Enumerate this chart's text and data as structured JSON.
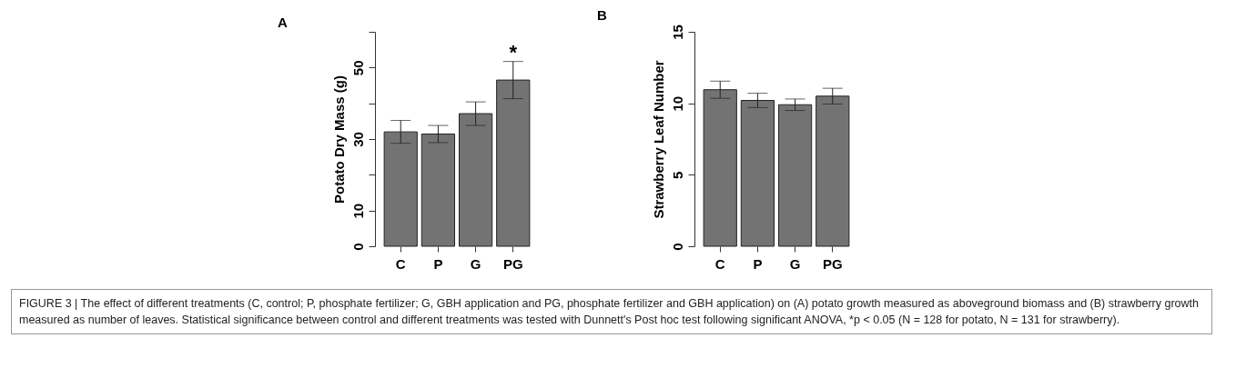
{
  "chart_data": [
    {
      "type": "bar",
      "title": "A",
      "ylabel": "Potato Dry Mass (g)",
      "categories": [
        "C",
        "P",
        "G",
        "PG"
      ],
      "values": [
        32,
        31.4,
        37.1,
        46.5
      ],
      "errors": [
        3.2,
        2.4,
        3.3,
        5.2
      ],
      "color": "#737373",
      "ylim": [
        0,
        60
      ],
      "yticks": [
        0,
        10,
        {
          "value": 20,
          "label": null
        },
        30,
        {
          "value": 40,
          "label": null
        },
        50,
        {
          "value": 60,
          "label": null
        }
      ],
      "grid": false,
      "annotations": [
        {
          "text": "*",
          "x": "PG",
          "y": 46.5
        }
      ]
    },
    {
      "type": "bar",
      "title": "B",
      "ylabel": "Strawberry Leaf Number",
      "categories": [
        "C",
        "P",
        "G",
        "PG"
      ],
      "values": [
        10.95,
        10.2,
        9.9,
        10.5
      ],
      "errors": [
        0.6,
        0.5,
        0.4,
        0.55
      ],
      "color": "#737373",
      "ylim": [
        0,
        15
      ],
      "yticks": [
        0,
        5,
        10,
        15
      ],
      "grid": false,
      "annotations": [
        "FIGURE 3 | The effect of different treatments (C, control; P, phosphate fertilizer; G, GBH application and PG, phosphate fertilizer and GBH application) on (A) potato growth measured as aboveground biomass and (B) strawberry growth measured as number of leaves. Statistical significance between control and different treatments was tested with Dunnett's Post hoc test following significant ANOVA, *p < 0.05 (N = 128 for potato, N = 131 for strawberry)."
      ]
    }
  ]
}
